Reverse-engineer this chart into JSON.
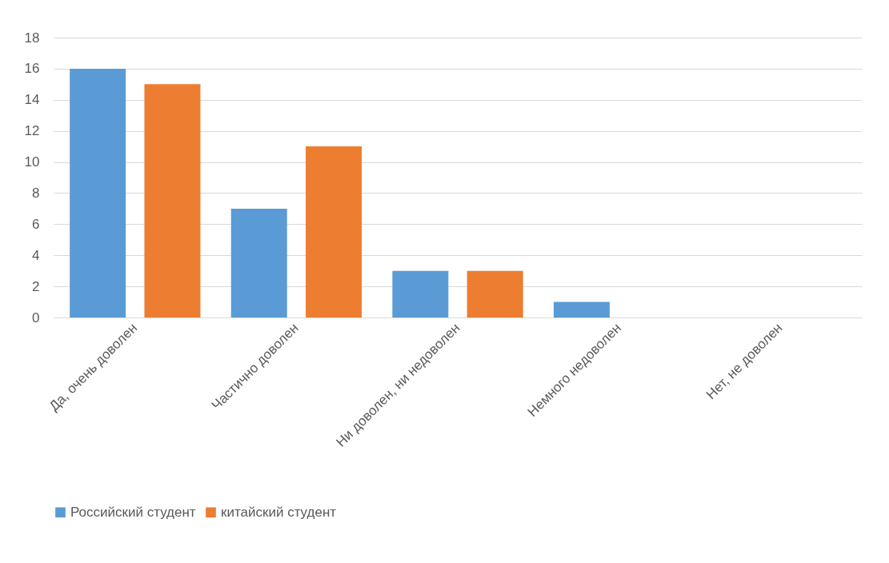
{
  "chart_data": {
    "type": "bar",
    "categories": [
      "Да, очень доволен",
      "Частично доволен",
      "Ни доволен, ни недоволен",
      "Немного недоволен",
      "Нет, не доволен"
    ],
    "series": [
      {
        "name": "Российский студент",
        "color": "#5b9bd5",
        "values": [
          16,
          7,
          3,
          1,
          0
        ]
      },
      {
        "name": "китайский студент",
        "color": "#ed7d31",
        "values": [
          15,
          11,
          3,
          0,
          0
        ]
      }
    ],
    "ylim": [
      0,
      18
    ],
    "yticks": [
      0,
      2,
      4,
      6,
      8,
      10,
      12,
      14,
      16,
      18
    ],
    "grid": "y",
    "legend": "bottom"
  }
}
